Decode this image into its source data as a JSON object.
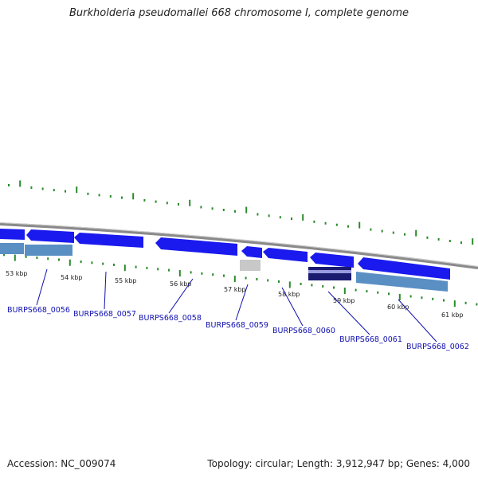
{
  "title": "Burkholderia pseudomallei 668 chromosome I, complete genome",
  "footer": {
    "accession": "Accession: NC_009074",
    "summary": "Topology: circular; Length: 3,912,947 bp; Genes: 4,000"
  },
  "colors": {
    "backbone": "#8a8a8a",
    "cds": "#1a1aee",
    "cds_pale": "#5a8fc4",
    "grey_feature": "#c8c8c8",
    "dark_feature": "#1a1a70",
    "tick": "#2a8a2a",
    "label": "#1010b0"
  },
  "scale_labels": [
    "53 kbp",
    "54 kbp",
    "55 kbp",
    "56 kbp",
    "57 kbp",
    "58 kbp",
    "59 kbp",
    "60 kbp",
    "61 kbp"
  ],
  "gene_labels": [
    "BURPS668_0056",
    "BURPS668_0057",
    "BURPS668_0058",
    "BURPS668_0059",
    "BURPS668_0060",
    "BURPS668_0061",
    "BURPS668_0062"
  ]
}
